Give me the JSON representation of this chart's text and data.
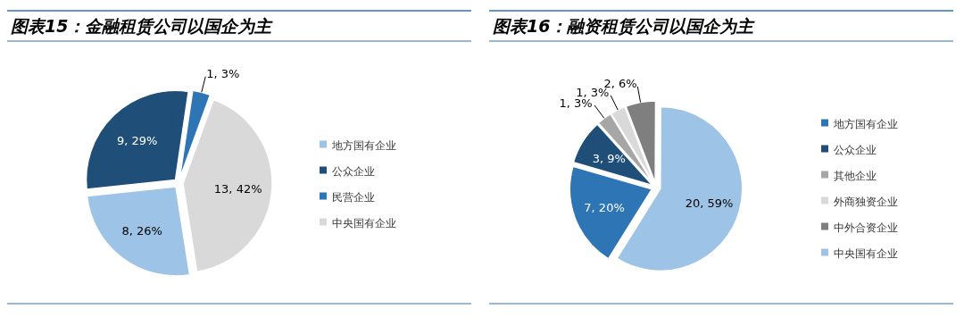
{
  "chart_data": [
    {
      "type": "pie",
      "title": "图表15：金融租赁公司以国企为主",
      "categories": [
        "地方国有企业",
        "公众企业",
        "民营企业",
        "中央国有企业"
      ],
      "values": [
        8,
        9,
        1,
        13
      ],
      "colors": [
        "#9dc3e6",
        "#1f4e79",
        "#2e75b6",
        "#d9d9d9"
      ],
      "value_labels": [
        "8, 26%",
        "9, 29%",
        "1, 3%",
        "13, 42%"
      ],
      "legend": "right"
    },
    {
      "type": "pie",
      "title": "图表16：融资租赁公司以国企为主",
      "categories": [
        "地方国有企业",
        "公众企业",
        "其他企业",
        "外商独资企业",
        "中外合资企业",
        "中央国有企业"
      ],
      "values": [
        7,
        3,
        1,
        1,
        2,
        20
      ],
      "colors": [
        "#2e75b6",
        "#1f4e79",
        "#a6a6a6",
        "#d9d9d9",
        "#7f7f7f",
        "#9dc3e6"
      ],
      "value_labels": [
        "7, 20%",
        "3, 9%",
        "1, 3%",
        "1, 3%",
        "2, 6%",
        "20, 59%"
      ],
      "legend": "right"
    }
  ]
}
